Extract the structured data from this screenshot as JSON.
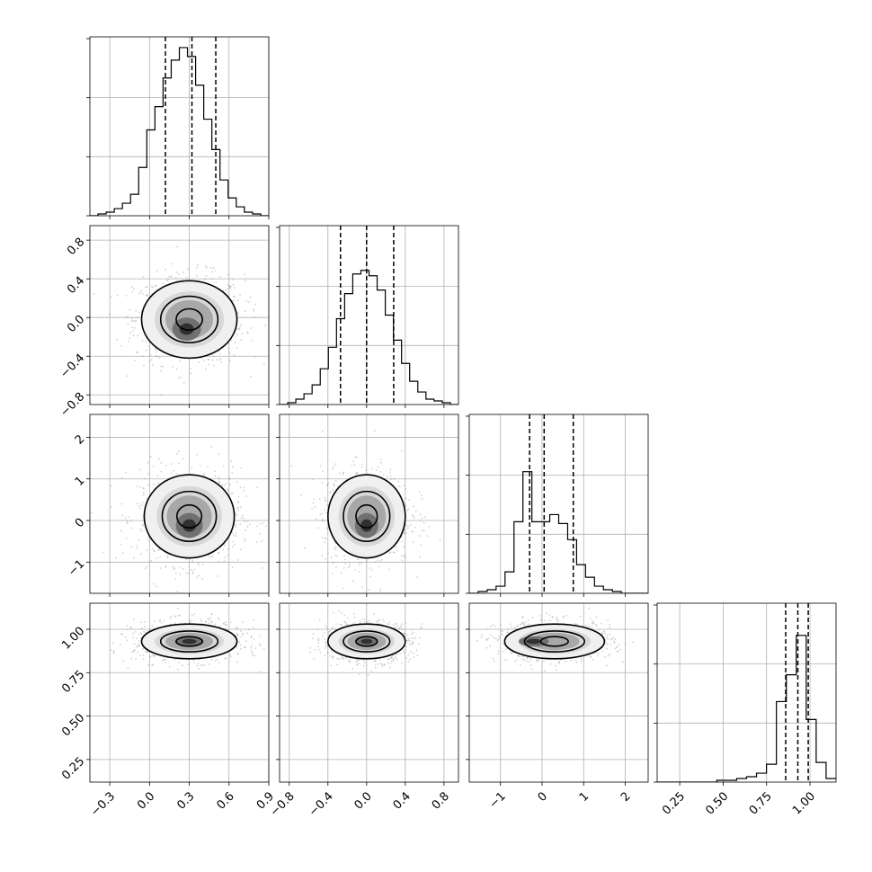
{
  "chart_data": {
    "type": "corner",
    "n_params": 4,
    "axes": [
      {
        "range": [
          -0.45,
          0.9
        ],
        "ticks": [
          -0.3,
          0.0,
          0.3,
          0.6,
          0.9
        ],
        "tick_labels": [
          "−0.3",
          "0.0",
          "0.3",
          "0.6",
          "0.9"
        ]
      },
      {
        "range": [
          -0.9,
          0.95
        ],
        "ticks": [
          -0.8,
          -0.4,
          0.0,
          0.4,
          0.8
        ],
        "tick_labels": [
          "−0.8",
          "−0.4",
          "0.0",
          "0.4",
          "0.8"
        ]
      },
      {
        "range": [
          -1.75,
          2.55
        ],
        "ticks": [
          -1,
          0,
          1,
          2
        ],
        "tick_labels": [
          "−1",
          "0",
          "1",
          "2"
        ]
      },
      {
        "range": [
          0.12,
          1.15
        ],
        "ticks": [
          0.25,
          0.5,
          0.75,
          1.0
        ],
        "tick_labels": [
          "0.25",
          "0.50",
          "0.75",
          "1.00"
        ]
      }
    ],
    "histograms": [
      {
        "counts": [
          0,
          0.01,
          0.02,
          0.04,
          0.07,
          0.12,
          0.27,
          0.48,
          0.61,
          0.77,
          0.87,
          0.94,
          0.89,
          0.73,
          0.54,
          0.37,
          0.2,
          0.1,
          0.05,
          0.02,
          0.01,
          0
        ],
        "quantiles": [
          0.12,
          0.32,
          0.5
        ]
      },
      {
        "counts": [
          0,
          0.01,
          0.03,
          0.06,
          0.11,
          0.2,
          0.32,
          0.48,
          0.62,
          0.73,
          0.75,
          0.72,
          0.64,
          0.5,
          0.36,
          0.23,
          0.13,
          0.07,
          0.03,
          0.02,
          0.01,
          0
        ],
        "quantiles": [
          -0.27,
          0.0,
          0.28
        ]
      },
      {
        "counts": [
          0,
          0.01,
          0.02,
          0.04,
          0.12,
          0.4,
          0.68,
          0.4,
          0.4,
          0.44,
          0.39,
          0.3,
          0.16,
          0.09,
          0.04,
          0.02,
          0.01,
          0,
          0,
          0
        ],
        "quantiles": [
          -0.3,
          0.05,
          0.75
        ]
      },
      {
        "counts": [
          0,
          0,
          0,
          0,
          0,
          0,
          0.01,
          0.01,
          0.02,
          0.03,
          0.05,
          0.1,
          0.45,
          0.6,
          0.82,
          0.35,
          0.11,
          0.02
        ],
        "quantiles": [
          0.86,
          0.93,
          0.99
        ]
      }
    ],
    "pairs": [
      {
        "row": 1,
        "col": 0,
        "center": [
          0.3,
          -0.02
        ],
        "sigma": [
          0.18,
          0.2
        ],
        "contour_radii": [
          0.55,
          1.2,
          2.0
        ],
        "peak": [
          0.28,
          -0.12
        ]
      },
      {
        "row": 2,
        "col": 0,
        "center": [
          0.3,
          0.1
        ],
        "sigma": [
          0.17,
          0.5
        ],
        "contour_radii": [
          0.55,
          1.2,
          2.0
        ],
        "peak": [
          0.3,
          -0.12
        ]
      },
      {
        "row": 2,
        "col": 1,
        "center": [
          0.0,
          0.1
        ],
        "sigma": [
          0.2,
          0.5
        ],
        "contour_radii": [
          0.55,
          1.2,
          2.0
        ],
        "peak": [
          0.0,
          -0.12
        ]
      },
      {
        "row": 3,
        "col": 0,
        "center": [
          0.3,
          0.93
        ],
        "sigma": [
          0.18,
          0.05
        ],
        "contour_radii": [
          0.55,
          1.2,
          2.0
        ],
        "peak": [
          0.3,
          0.93
        ]
      },
      {
        "row": 3,
        "col": 1,
        "center": [
          0.0,
          0.93
        ],
        "sigma": [
          0.2,
          0.05
        ],
        "contour_radii": [
          0.55,
          1.2,
          2.0
        ],
        "peak": [
          0.0,
          0.93
        ]
      },
      {
        "row": 3,
        "col": 2,
        "center": [
          0.3,
          0.93
        ],
        "sigma": [
          0.6,
          0.05
        ],
        "contour_radii": [
          0.55,
          1.2,
          2.0
        ],
        "peak": [
          -0.2,
          0.93
        ]
      }
    ],
    "grid": true,
    "title": "",
    "xlabel": "",
    "ylabel": ""
  }
}
